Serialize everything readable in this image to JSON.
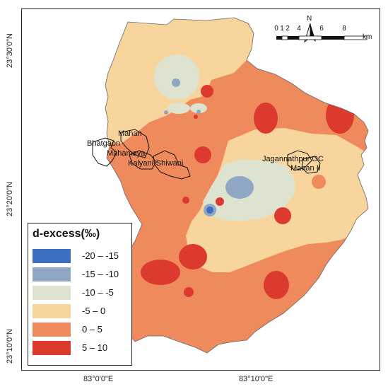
{
  "legend": {
    "title": "d-excess(‰)",
    "items": [
      {
        "label": "-20 – -15",
        "color": "#3e6fbf"
      },
      {
        "label": "-15 – -10",
        "color": "#8fa6c4"
      },
      {
        "label": "-10 – -5",
        "color": "#dde3cf"
      },
      {
        "label": "-5 – 0",
        "color": "#f9d59e"
      },
      {
        "label": "0 – 5",
        "color": "#ef8a5c"
      },
      {
        "label": "5 – 10",
        "color": "#dc3a2f"
      }
    ]
  },
  "coordinates": {
    "lat_top": "23°30'0\"N",
    "lat_mid": "23°20'0\"N",
    "lat_bottom": "23°10'0\"N",
    "lon_left": "83°0'0\"E",
    "lon_right": "83°10'0\"E"
  },
  "north_arrow": {
    "label": "N"
  },
  "scale_bar": {
    "labels": [
      "0",
      "1",
      "2",
      "4",
      "6",
      "8"
    ],
    "unit": "km"
  },
  "places": [
    {
      "name": "Mahan"
    },
    {
      "name": "Bhatgaon"
    },
    {
      "name": "Mahamaya"
    },
    {
      "name": "Kalyani-Shiwani"
    },
    {
      "name": "Jagannathpur OC"
    },
    {
      "name": "Mahan II"
    }
  ]
}
